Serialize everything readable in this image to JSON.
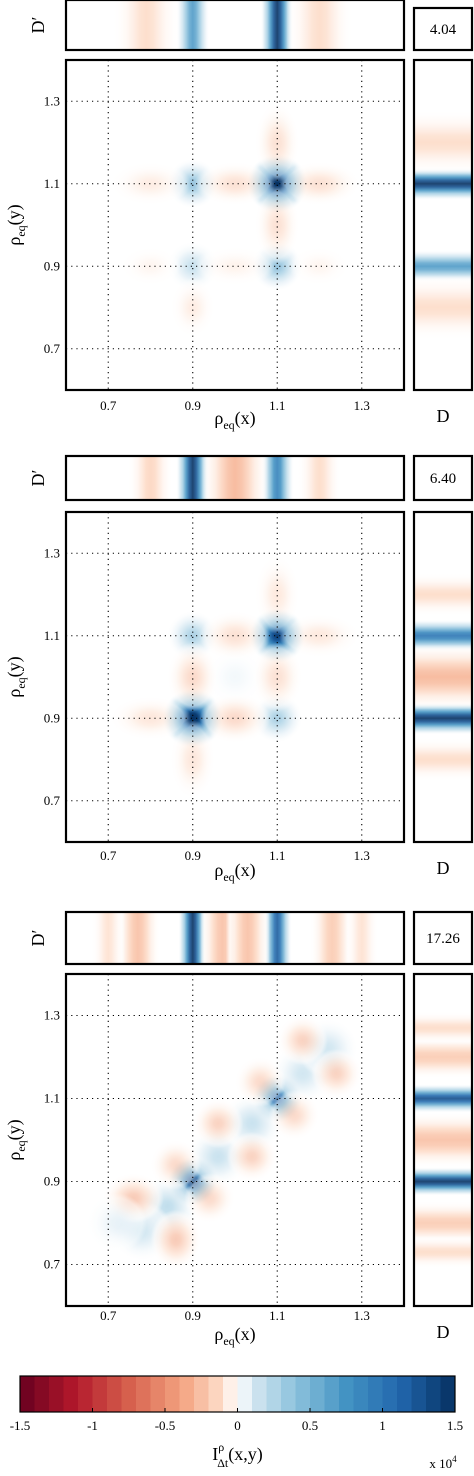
{
  "chart_data": {
    "type": "heatmap",
    "panels": [
      {
        "value_label": "4.04",
        "xlabel": "ρ_eq(x)",
        "ylabel": "ρ_eq(y)",
        "xlim": [
          0.6,
          1.4
        ],
        "ylim": [
          0.6,
          1.4
        ],
        "xticks": [
          "0.7",
          "0.9",
          "1.1",
          "1.3"
        ],
        "yticks": [
          "0.7",
          "0.9",
          "1.1",
          "1.3"
        ],
        "top_strip_label": "D′",
        "side_strip_label": "D",
        "blobs": [
          {
            "x": 1.1,
            "y": 1.1,
            "v": 1.6,
            "sx": 0.03,
            "sy": 0.03
          },
          {
            "x": 0.9,
            "y": 1.1,
            "v": 0.6,
            "sx": 0.025,
            "sy": 0.025
          },
          {
            "x": 1.1,
            "y": 0.9,
            "v": 0.6,
            "sx": 0.025,
            "sy": 0.025
          },
          {
            "x": 0.9,
            "y": 0.9,
            "v": 0.35,
            "sx": 0.025,
            "sy": 0.025
          },
          {
            "x": 1.2,
            "y": 1.1,
            "v": -0.25,
            "sx": 0.04,
            "sy": 0.022
          },
          {
            "x": 1.0,
            "y": 1.1,
            "v": -0.25,
            "sx": 0.04,
            "sy": 0.022
          },
          {
            "x": 1.1,
            "y": 1.2,
            "v": -0.25,
            "sx": 0.022,
            "sy": 0.04
          },
          {
            "x": 1.1,
            "y": 1.0,
            "v": -0.25,
            "sx": 0.022,
            "sy": 0.04
          },
          {
            "x": 0.8,
            "y": 1.1,
            "v": -0.15,
            "sx": 0.04,
            "sy": 0.022
          },
          {
            "x": 0.9,
            "y": 0.8,
            "v": -0.15,
            "sx": 0.022,
            "sy": 0.03
          },
          {
            "x": 1.0,
            "y": 0.9,
            "v": -0.1,
            "sx": 0.04,
            "sy": 0.02
          },
          {
            "x": 0.8,
            "y": 0.9,
            "v": -0.08,
            "sx": 0.03,
            "sy": 0.02
          },
          {
            "x": 1.2,
            "y": 0.9,
            "v": -0.08,
            "sx": 0.03,
            "sy": 0.02
          }
        ],
        "top_strip": [
          {
            "x": 1.1,
            "v": 1.5,
            "s": 0.015
          },
          {
            "x": 0.9,
            "v": 0.7,
            "s": 0.015
          },
          {
            "x": 0.79,
            "v": -0.12,
            "s": 0.03
          },
          {
            "x": 1.2,
            "v": -0.12,
            "s": 0.03
          }
        ],
        "side_strip": [
          {
            "y": 1.1,
            "v": 1.5,
            "s": 0.015
          },
          {
            "y": 0.9,
            "v": 0.7,
            "s": 0.015
          },
          {
            "y": 1.2,
            "v": -0.12,
            "s": 0.03
          },
          {
            "y": 0.8,
            "v": -0.12,
            "s": 0.03
          }
        ]
      },
      {
        "value_label": "6.40",
        "xlabel": "ρ_eq(x)",
        "ylabel": "ρ_eq(y)",
        "xlim": [
          0.6,
          1.4
        ],
        "ylim": [
          0.6,
          1.4
        ],
        "xticks": [
          "0.7",
          "0.9",
          "1.1",
          "1.3"
        ],
        "yticks": [
          "0.7",
          "0.9",
          "1.1",
          "1.3"
        ],
        "top_strip_label": "D′",
        "side_strip_label": "D",
        "blobs": [
          {
            "x": 0.9,
            "y": 0.9,
            "v": 1.6,
            "sx": 0.03,
            "sy": 0.03
          },
          {
            "x": 1.1,
            "y": 1.1,
            "v": 1.4,
            "sx": 0.028,
            "sy": 0.028
          },
          {
            "x": 0.9,
            "y": 1.1,
            "v": 0.5,
            "sx": 0.025,
            "sy": 0.025
          },
          {
            "x": 1.1,
            "y": 0.9,
            "v": 0.5,
            "sx": 0.025,
            "sy": 0.025
          },
          {
            "x": 1.0,
            "y": 1.0,
            "v": 0.08,
            "sx": 0.03,
            "sy": 0.03
          },
          {
            "x": 1.0,
            "y": 0.9,
            "v": -0.3,
            "sx": 0.035,
            "sy": 0.025
          },
          {
            "x": 0.9,
            "y": 1.0,
            "v": -0.3,
            "sx": 0.025,
            "sy": 0.035
          },
          {
            "x": 1.0,
            "y": 1.1,
            "v": -0.25,
            "sx": 0.035,
            "sy": 0.025
          },
          {
            "x": 1.1,
            "y": 1.0,
            "v": -0.25,
            "sx": 0.025,
            "sy": 0.035
          },
          {
            "x": 0.8,
            "y": 0.9,
            "v": -0.2,
            "sx": 0.04,
            "sy": 0.022
          },
          {
            "x": 0.9,
            "y": 0.8,
            "v": -0.2,
            "sx": 0.022,
            "sy": 0.04
          },
          {
            "x": 1.2,
            "y": 1.1,
            "v": -0.18,
            "sx": 0.04,
            "sy": 0.022
          },
          {
            "x": 1.1,
            "y": 1.2,
            "v": -0.18,
            "sx": 0.022,
            "sy": 0.04
          }
        ],
        "top_strip": [
          {
            "x": 0.9,
            "v": 1.5,
            "s": 0.015
          },
          {
            "x": 1.1,
            "v": 0.9,
            "s": 0.015
          },
          {
            "x": 1.0,
            "v": -0.3,
            "s": 0.03
          },
          {
            "x": 0.8,
            "v": -0.15,
            "s": 0.02
          },
          {
            "x": 1.2,
            "v": -0.12,
            "s": 0.02
          }
        ],
        "side_strip": [
          {
            "y": 0.9,
            "v": 1.5,
            "s": 0.015
          },
          {
            "y": 1.1,
            "v": 1.0,
            "s": 0.015
          },
          {
            "y": 1.0,
            "v": -0.3,
            "s": 0.03
          },
          {
            "y": 0.8,
            "v": -0.12,
            "s": 0.02
          },
          {
            "y": 1.2,
            "v": -0.12,
            "s": 0.02
          }
        ]
      },
      {
        "value_label": "17.26",
        "xlabel": "ρ_eq(x)",
        "ylabel": "ρ_eq(y)",
        "xlim": [
          0.6,
          1.4
        ],
        "ylim": [
          0.6,
          1.4
        ],
        "xticks": [
          "0.7",
          "0.9",
          "1.1",
          "1.3"
        ],
        "yticks": [
          "0.7",
          "0.9",
          "1.1",
          "1.3"
        ],
        "top_strip_label": "D′",
        "side_strip_label": "D",
        "blobs": [
          {
            "x": 0.9,
            "y": 0.9,
            "v": 1.4,
            "sx": 0.025,
            "sy": 0.025
          },
          {
            "x": 1.1,
            "y": 1.1,
            "v": 1.2,
            "sx": 0.025,
            "sy": 0.025
          },
          {
            "x": 0.84,
            "y": 0.84,
            "v": 0.4,
            "sx": 0.03,
            "sy": 0.03
          },
          {
            "x": 0.96,
            "y": 0.96,
            "v": 0.35,
            "sx": 0.03,
            "sy": 0.03
          },
          {
            "x": 1.04,
            "y": 1.04,
            "v": 0.35,
            "sx": 0.03,
            "sy": 0.03
          },
          {
            "x": 1.16,
            "y": 1.16,
            "v": 0.3,
            "sx": 0.03,
            "sy": 0.03
          },
          {
            "x": 0.78,
            "y": 0.78,
            "v": 0.3,
            "sx": 0.03,
            "sy": 0.03
          },
          {
            "x": 1.22,
            "y": 1.22,
            "v": 0.3,
            "sx": 0.03,
            "sy": 0.03
          },
          {
            "x": 0.76,
            "y": 0.86,
            "v": -0.4,
            "sx": 0.03,
            "sy": 0.025
          },
          {
            "x": 0.86,
            "y": 0.76,
            "v": -0.4,
            "sx": 0.025,
            "sy": 0.03
          },
          {
            "x": 0.96,
            "y": 1.04,
            "v": -0.35,
            "sx": 0.025,
            "sy": 0.025
          },
          {
            "x": 1.04,
            "y": 0.96,
            "v": -0.35,
            "sx": 0.025,
            "sy": 0.025
          },
          {
            "x": 1.16,
            "y": 1.24,
            "v": -0.35,
            "sx": 0.025,
            "sy": 0.025
          },
          {
            "x": 1.24,
            "y": 1.16,
            "v": -0.35,
            "sx": 0.025,
            "sy": 0.025
          },
          {
            "x": 1.06,
            "y": 1.14,
            "v": -0.3,
            "sx": 0.025,
            "sy": 0.025
          },
          {
            "x": 0.86,
            "y": 0.94,
            "v": -0.3,
            "sx": 0.025,
            "sy": 0.025
          },
          {
            "x": 0.94,
            "y": 0.86,
            "v": -0.3,
            "sx": 0.025,
            "sy": 0.025
          },
          {
            "x": 1.14,
            "y": 1.06,
            "v": -0.3,
            "sx": 0.025,
            "sy": 0.025
          },
          {
            "x": 0.72,
            "y": 0.8,
            "v": 0.15,
            "sx": 0.03,
            "sy": 0.03
          }
        ],
        "top_strip": [
          {
            "x": 0.9,
            "v": 1.5,
            "s": 0.013
          },
          {
            "x": 1.1,
            "v": 1.2,
            "s": 0.013
          },
          {
            "x": 0.97,
            "v": -0.25,
            "s": 0.02
          },
          {
            "x": 1.03,
            "v": -0.25,
            "s": 0.02
          },
          {
            "x": 0.77,
            "v": -0.25,
            "s": 0.02
          },
          {
            "x": 1.23,
            "v": -0.2,
            "s": 0.02
          },
          {
            "x": 0.7,
            "v": -0.1,
            "s": 0.015
          },
          {
            "x": 1.3,
            "v": -0.1,
            "s": 0.015
          }
        ],
        "side_strip": [
          {
            "y": 0.9,
            "v": 1.5,
            "s": 0.013
          },
          {
            "y": 1.1,
            "v": 1.3,
            "s": 0.013
          },
          {
            "y": 1.0,
            "v": -0.25,
            "s": 0.025
          },
          {
            "y": 0.8,
            "v": -0.2,
            "s": 0.02
          },
          {
            "y": 1.2,
            "v": -0.2,
            "s": 0.02
          },
          {
            "y": 0.73,
            "v": -0.12,
            "s": 0.015
          },
          {
            "y": 1.27,
            "v": -0.12,
            "s": 0.015
          }
        ]
      }
    ],
    "colorbar": {
      "label": "I^ρ_Δt(x,y)",
      "range": [
        -1.5,
        1.5
      ],
      "ticks": [
        "-1.5",
        "-1",
        "-0.5",
        "0",
        "0.5",
        "1",
        "1.5"
      ],
      "multiplier": "x 10^4",
      "colors": {
        "negative_max": "#67001f",
        "positive_max": "#053061",
        "zero": "#ffffff"
      }
    }
  }
}
